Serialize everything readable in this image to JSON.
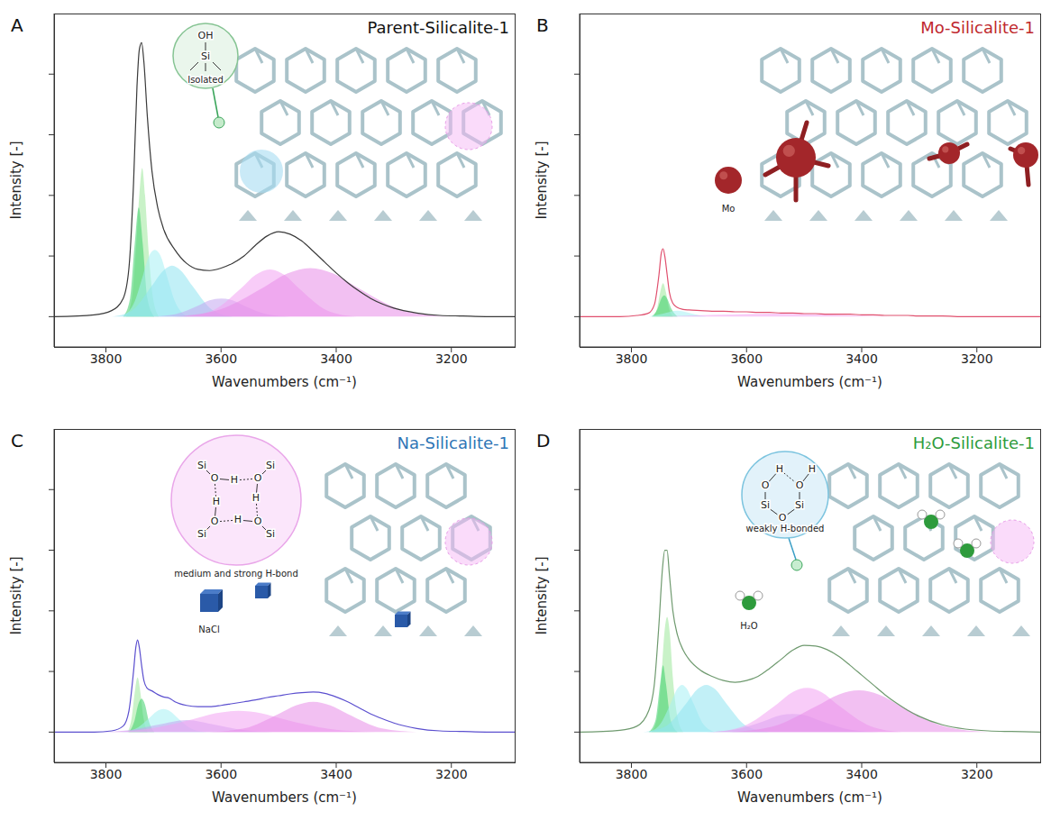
{
  "chart_data": [
    {
      "type": "line",
      "panel_label": "A",
      "title": "Parent-Silicalite-1",
      "x_label": "Wavenumbers (cm⁻¹)",
      "y_label": "Intensity [-]",
      "xlim": [
        3890,
        3090
      ],
      "xticks": [
        3800,
        3600,
        3400,
        3200
      ],
      "ylim": [
        -0.5,
        5
      ],
      "yticks": [
        0,
        1,
        2,
        3,
        4
      ],
      "tick_labels": "x",
      "annotations": {
        "caption": "Isolated",
        "atoms": [
          "OH",
          "Si"
        ]
      },
      "series": [
        {
          "type": "area",
          "color": "#9de89a",
          "x": [
            3765,
            3755,
            3748,
            3742,
            3737,
            3732,
            3726,
            3718,
            3708
          ],
          "values": [
            0,
            0.3,
            1.1,
            2.0,
            2.45,
            2.0,
            1.1,
            0.3,
            0
          ]
        },
        {
          "type": "area",
          "color": "#3ccf6a",
          "x": [
            3770,
            3758,
            3750,
            3743,
            3736,
            3728,
            3716
          ],
          "values": [
            0,
            0.3,
            1.2,
            1.8,
            1.2,
            0.3,
            0
          ]
        },
        {
          "type": "area",
          "color": "#a6f0f4",
          "x": [
            3770,
            3750,
            3735,
            3725,
            3715,
            3705,
            3695,
            3680,
            3660
          ],
          "values": [
            0,
            0.25,
            0.7,
            1.0,
            1.1,
            1.0,
            0.7,
            0.25,
            0
          ]
        },
        {
          "type": "area",
          "color": "#8fe3f0",
          "x": [
            3790,
            3755,
            3720,
            3700,
            3685,
            3670,
            3650,
            3615,
            3580
          ],
          "values": [
            0,
            0.1,
            0.51,
            0.76,
            0.84,
            0.76,
            0.51,
            0.11,
            0
          ]
        },
        {
          "type": "area",
          "color": "#c3a6f0",
          "x": [
            3720,
            3680,
            3640,
            3620,
            3600,
            3580,
            3560,
            3520,
            3480
          ],
          "values": [
            0,
            0.04,
            0.18,
            0.27,
            0.3,
            0.27,
            0.18,
            0.04,
            0
          ]
        },
        {
          "type": "area",
          "color": "#f3a3f3",
          "x": [
            3665,
            3615,
            3565,
            3540,
            3515,
            3490,
            3465,
            3415,
            3365
          ],
          "values": [
            0,
            0.1,
            0.47,
            0.69,
            0.78,
            0.69,
            0.47,
            0.1,
            0
          ]
        },
        {
          "type": "area",
          "color": "#e78de8",
          "x": [
            3685,
            3605,
            3525,
            3485,
            3445,
            3405,
            3365,
            3285,
            3205
          ],
          "values": [
            0,
            0.11,
            0.49,
            0.71,
            0.8,
            0.71,
            0.49,
            0.11,
            0
          ]
        },
        {
          "type": "line",
          "color": "#3a3a3a",
          "x": [
            3890,
            3820,
            3790,
            3770,
            3760,
            3752,
            3746,
            3742,
            3738,
            3734,
            3728,
            3720,
            3710,
            3700,
            3680,
            3660,
            3640,
            3620,
            3600,
            3580,
            3560,
            3540,
            3520,
            3500,
            3480,
            3460,
            3440,
            3420,
            3400,
            3380,
            3360,
            3340,
            3320,
            3300,
            3260,
            3220,
            3180,
            3140,
            3090
          ],
          "values": [
            0,
            0.03,
            0.1,
            0.3,
            0.8,
            2.2,
            3.8,
            4.4,
            4.52,
            4.2,
            3.3,
            2.4,
            1.8,
            1.45,
            1.1,
            0.88,
            0.78,
            0.76,
            0.8,
            0.88,
            1.0,
            1.18,
            1.33,
            1.4,
            1.36,
            1.25,
            1.08,
            0.9,
            0.72,
            0.56,
            0.42,
            0.3,
            0.21,
            0.14,
            0.06,
            0.02,
            0.01,
            0,
            0
          ]
        }
      ]
    },
    {
      "type": "line",
      "panel_label": "B",
      "title": "Mo-Silicalite-1",
      "x_label": "Wavenumbers (cm⁻¹)",
      "y_label": "Intensity [-]",
      "xlim": [
        3890,
        3090
      ],
      "xticks": [
        3800,
        3600,
        3400,
        3200
      ],
      "ylim": [
        -0.5,
        5
      ],
      "yticks": [
        0,
        1,
        2,
        3,
        4
      ],
      "tick_labels": "x",
      "annotations": {
        "caption": "Mo"
      },
      "series": [
        {
          "type": "area",
          "color": "#9de89a",
          "x": [
            3762,
            3755,
            3750,
            3745,
            3740,
            3735,
            3728
          ],
          "values": [
            0,
            0.15,
            0.4,
            0.55,
            0.4,
            0.15,
            0
          ]
        },
        {
          "type": "area",
          "color": "#3ccf6a",
          "x": [
            3765,
            3755,
            3748,
            3743,
            3738,
            3730,
            3720
          ],
          "values": [
            0,
            0.12,
            0.3,
            0.35,
            0.3,
            0.12,
            0
          ]
        },
        {
          "type": "area",
          "color": "#a6f0f4",
          "x": [
            3770,
            3745,
            3720,
            3695,
            3670
          ],
          "values": [
            0,
            0.05,
            0.1,
            0.05,
            0
          ]
        },
        {
          "type": "area",
          "color": "#f3a3f3",
          "x": [
            3750,
            3650,
            3550,
            3450,
            3350
          ],
          "values": [
            0,
            0.03,
            0.05,
            0.03,
            0
          ]
        },
        {
          "type": "line",
          "color": "#e0506e",
          "x": [
            3890,
            3820,
            3790,
            3770,
            3760,
            3752,
            3748,
            3745,
            3742,
            3738,
            3734,
            3728,
            3720,
            3710,
            3700,
            3680,
            3660,
            3640,
            3620,
            3600,
            3580,
            3560,
            3540,
            3520,
            3500,
            3480,
            3460,
            3440,
            3420,
            3400,
            3380,
            3360,
            3340,
            3320,
            3300,
            3260,
            3220,
            3140,
            3090
          ],
          "values": [
            0,
            0,
            0.02,
            0.06,
            0.2,
            0.7,
            1.05,
            1.12,
            1.0,
            0.7,
            0.4,
            0.22,
            0.15,
            0.12,
            0.11,
            0.1,
            0.09,
            0.09,
            0.08,
            0.08,
            0.07,
            0.07,
            0.06,
            0.06,
            0.05,
            0.05,
            0.04,
            0.04,
            0.04,
            0.03,
            0.03,
            0.02,
            0.02,
            0.02,
            0.01,
            0.01,
            0,
            0,
            0
          ]
        }
      ]
    },
    {
      "type": "line",
      "panel_label": "C",
      "title": "Na-Silicalite-1",
      "x_label": "Wavenumbers (cm⁻¹)",
      "y_label": "Intensity [-]",
      "xlim": [
        3890,
        3090
      ],
      "xticks": [
        3800,
        3600,
        3400,
        3200
      ],
      "ylim": [
        -0.5,
        5
      ],
      "yticks": [
        0,
        1,
        2,
        3,
        4
      ],
      "tick_labels": "x",
      "annotations": {
        "caption": "medium and strong H-bond",
        "atoms": [
          "Si",
          "O",
          "H",
          "Si",
          "O",
          "H",
          "Si",
          "O",
          "H",
          "Si",
          "O",
          "H"
        ],
        "particle": "NaCl"
      },
      "series": [
        {
          "type": "area",
          "color": "#9de89a",
          "x": [
            3762,
            3755,
            3750,
            3745,
            3740,
            3735,
            3728
          ],
          "values": [
            0,
            0.25,
            0.65,
            0.9,
            0.65,
            0.25,
            0
          ]
        },
        {
          "type": "area",
          "color": "#3ccf6a",
          "x": [
            3760,
            3750,
            3744,
            3738,
            3732,
            3726,
            3716
          ],
          "values": [
            0,
            0.2,
            0.45,
            0.55,
            0.45,
            0.2,
            0
          ]
        },
        {
          "type": "area",
          "color": "#a6f0f4",
          "x": [
            3775,
            3750,
            3725,
            3712,
            3700,
            3688,
            3675,
            3650,
            3625
          ],
          "values": [
            0,
            0.05,
            0.23,
            0.34,
            0.38,
            0.34,
            0.23,
            0.05,
            0
          ]
        },
        {
          "type": "area",
          "color": "#c3a6f0",
          "x": [
            3810,
            3760,
            3710,
            3660,
            3610,
            3560,
            3510
          ],
          "values": [
            0,
            0.03,
            0.12,
            0.2,
            0.12,
            0.03,
            0
          ]
        },
        {
          "type": "area",
          "color": "#f3a3f3",
          "x": [
            3810,
            3730,
            3650,
            3610,
            3570,
            3530,
            3490,
            3410,
            3330
          ],
          "values": [
            0,
            0.05,
            0.21,
            0.31,
            0.35,
            0.31,
            0.21,
            0.05,
            0
          ]
        },
        {
          "type": "area",
          "color": "#e78de8",
          "x": [
            3620,
            3560,
            3500,
            3470,
            3440,
            3410,
            3380,
            3320,
            3260
          ],
          "values": [
            0,
            0.06,
            0.3,
            0.44,
            0.5,
            0.44,
            0.3,
            0.06,
            0
          ]
        },
        {
          "type": "line",
          "color": "#5b4fcf",
          "x": [
            3890,
            3820,
            3790,
            3770,
            3760,
            3752,
            3748,
            3745,
            3742,
            3738,
            3734,
            3728,
            3720,
            3710,
            3700,
            3690,
            3680,
            3660,
            3640,
            3620,
            3600,
            3580,
            3560,
            3540,
            3520,
            3500,
            3480,
            3460,
            3440,
            3420,
            3400,
            3380,
            3360,
            3340,
            3320,
            3300,
            3260,
            3220,
            3180,
            3140,
            3090
          ],
          "values": [
            0,
            0,
            0.02,
            0.1,
            0.35,
            1.0,
            1.4,
            1.52,
            1.4,
            1.1,
            0.85,
            0.72,
            0.68,
            0.62,
            0.58,
            0.56,
            0.5,
            0.44,
            0.42,
            0.42,
            0.44,
            0.47,
            0.5,
            0.53,
            0.57,
            0.6,
            0.63,
            0.65,
            0.66,
            0.64,
            0.58,
            0.5,
            0.4,
            0.3,
            0.22,
            0.15,
            0.06,
            0.02,
            0.01,
            0,
            0
          ]
        }
      ]
    },
    {
      "type": "line",
      "panel_label": "D",
      "title": "H₂O-Silicalite-1",
      "x_label": "Wavenumbers (cm⁻¹)",
      "y_label": "Intensity [-]",
      "xlim": [
        3890,
        3090
      ],
      "xticks": [
        3800,
        3600,
        3400,
        3200
      ],
      "ylim": [
        -0.5,
        5
      ],
      "yticks": [
        0,
        1,
        2,
        3,
        4
      ],
      "tick_labels": "x",
      "annotations": {
        "caption": "weakly H-bonded",
        "atoms": [
          "O",
          "H",
          "O",
          "H",
          "Si",
          "O",
          "Si"
        ],
        "particle": "H₂O"
      },
      "series": [
        {
          "type": "area",
          "color": "#9de89a",
          "x": [
            3765,
            3755,
            3748,
            3743,
            3738,
            3733,
            3728,
            3720,
            3710
          ],
          "values": [
            0,
            0.25,
            0.9,
            1.6,
            1.9,
            1.6,
            0.9,
            0.25,
            0
          ]
        },
        {
          "type": "area",
          "color": "#3ccf6a",
          "x": [
            3770,
            3758,
            3750,
            3745,
            3740,
            3732,
            3720
          ],
          "values": [
            0,
            0.2,
            0.8,
            1.1,
            0.8,
            0.2,
            0
          ]
        },
        {
          "type": "area",
          "color": "#a6f0f4",
          "x": [
            3770,
            3750,
            3732,
            3720,
            3712,
            3704,
            3692,
            3675,
            3655
          ],
          "values": [
            0,
            0.13,
            0.47,
            0.72,
            0.78,
            0.72,
            0.47,
            0.13,
            0
          ]
        },
        {
          "type": "area",
          "color": "#8fe3f0",
          "x": [
            3780,
            3740,
            3705,
            3685,
            3670,
            3655,
            3635,
            3600,
            3560
          ],
          "values": [
            0,
            0.1,
            0.47,
            0.71,
            0.78,
            0.71,
            0.47,
            0.1,
            0
          ]
        },
        {
          "type": "area",
          "color": "#c3a6f0",
          "x": [
            3670,
            3620,
            3570,
            3540,
            3520,
            3500,
            3470,
            3420,
            3370
          ],
          "values": [
            0,
            0.04,
            0.18,
            0.28,
            0.3,
            0.28,
            0.18,
            0.04,
            0
          ]
        },
        {
          "type": "area",
          "color": "#f3a3f3",
          "x": [
            3660,
            3605,
            3550,
            3520,
            3495,
            3470,
            3440,
            3385,
            3330
          ],
          "values": [
            0,
            0.1,
            0.44,
            0.66,
            0.73,
            0.66,
            0.44,
            0.1,
            0
          ]
        },
        {
          "type": "area",
          "color": "#e78de8",
          "x": [
            3630,
            3555,
            3480,
            3440,
            3405,
            3370,
            3330,
            3255,
            3180
          ],
          "values": [
            0,
            0.09,
            0.42,
            0.62,
            0.69,
            0.62,
            0.42,
            0.09,
            0
          ]
        },
        {
          "type": "line",
          "color": "#6f9a6f",
          "x": [
            3890,
            3820,
            3790,
            3770,
            3760,
            3752,
            3746,
            3742,
            3738,
            3734,
            3728,
            3720,
            3710,
            3700,
            3680,
            3660,
            3640,
            3620,
            3600,
            3580,
            3560,
            3540,
            3520,
            3500,
            3480,
            3460,
            3440,
            3420,
            3400,
            3380,
            3360,
            3340,
            3320,
            3300,
            3260,
            3220,
            3180,
            3140,
            3090
          ],
          "values": [
            0,
            0.03,
            0.1,
            0.35,
            0.8,
            1.8,
            2.7,
            3.0,
            3.0,
            2.6,
            2.0,
            1.6,
            1.35,
            1.2,
            1.02,
            0.92,
            0.85,
            0.82,
            0.85,
            0.92,
            1.05,
            1.2,
            1.35,
            1.43,
            1.42,
            1.36,
            1.25,
            1.1,
            0.94,
            0.78,
            0.62,
            0.48,
            0.36,
            0.26,
            0.12,
            0.05,
            0.02,
            0.01,
            0
          ]
        }
      ]
    }
  ]
}
